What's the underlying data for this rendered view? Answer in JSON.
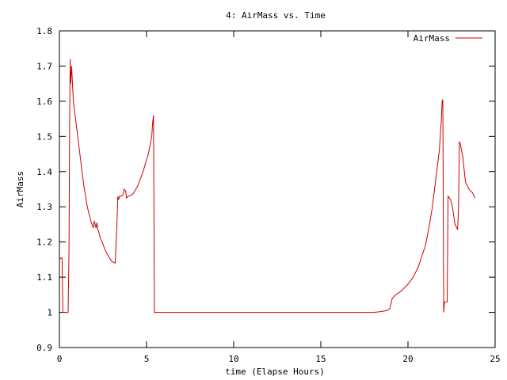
{
  "chart_data": {
    "type": "line",
    "title": "4: AirMass vs. Time",
    "xlabel": "time (Elapse Hours)",
    "ylabel": "AirMass",
    "xlim": [
      0,
      25
    ],
    "ylim": [
      0.9,
      1.8
    ],
    "xticks": [
      0,
      5,
      10,
      15,
      20,
      25
    ],
    "xtick_labels": [
      "0",
      "5",
      "10",
      "15",
      "20",
      "25"
    ],
    "yticks": [
      0.9,
      1,
      1.1,
      1.2,
      1.3,
      1.4,
      1.5,
      1.6,
      1.7,
      1.8
    ],
    "ytick_labels": [
      "0.9",
      "1",
      "1.1",
      "1.2",
      "1.3",
      "1.4",
      "1.5",
      "1.6",
      "1.7",
      "1.8"
    ],
    "grid": false,
    "legend": "top-right",
    "series": [
      {
        "name": "AirMass",
        "color": "#cc0000",
        "x": [
          0.0,
          0.1,
          0.15,
          0.2,
          0.3,
          0.4,
          0.45,
          0.5,
          0.55,
          0.58,
          0.62,
          0.65,
          0.7,
          0.8,
          1.0,
          1.2,
          1.4,
          1.6,
          1.8,
          1.95,
          2.0,
          2.1,
          2.15,
          2.2,
          2.25,
          2.35,
          2.45,
          2.6,
          2.8,
          3.0,
          3.2,
          3.3,
          3.35,
          3.4,
          3.45,
          3.55,
          3.65,
          3.72,
          3.8,
          3.85,
          3.95,
          4.2,
          4.5,
          4.8,
          5.1,
          5.3,
          5.35,
          5.4,
          5.45,
          5.55,
          5.6,
          6.0,
          10.0,
          15.0,
          18.0,
          18.4,
          18.8,
          18.95,
          19.0,
          19.1,
          19.2,
          19.3,
          19.6,
          20.0,
          20.3,
          20.6,
          20.8,
          21.0,
          21.2,
          21.4,
          21.6,
          21.8,
          21.92,
          21.96,
          22.0,
          22.05,
          22.1,
          22.15,
          22.2,
          22.25,
          22.3,
          22.45,
          22.55,
          22.7,
          22.85,
          22.9,
          22.95,
          23.0,
          23.15,
          23.3,
          23.5,
          23.7,
          23.85
        ],
        "y": [
          1.15,
          1.155,
          1.155,
          1.0,
          1.0,
          1.0,
          1.0,
          1.0,
          1.18,
          1.5,
          1.72,
          1.65,
          1.7,
          1.6,
          1.52,
          1.44,
          1.36,
          1.3,
          1.26,
          1.24,
          1.26,
          1.24,
          1.255,
          1.235,
          1.23,
          1.21,
          1.2,
          1.18,
          1.16,
          1.145,
          1.14,
          1.25,
          1.33,
          1.32,
          1.33,
          1.33,
          1.335,
          1.35,
          1.345,
          1.325,
          1.33,
          1.335,
          1.36,
          1.4,
          1.45,
          1.5,
          1.54,
          1.56,
          1.0,
          1.0,
          1.0,
          1.0,
          1.0,
          1.0,
          1.0,
          1.002,
          1.005,
          1.01,
          1.02,
          1.04,
          1.045,
          1.05,
          1.06,
          1.08,
          1.1,
          1.13,
          1.16,
          1.19,
          1.24,
          1.3,
          1.38,
          1.46,
          1.55,
          1.6,
          1.605,
          1.0,
          1.03,
          1.03,
          1.03,
          1.03,
          1.33,
          1.32,
          1.3,
          1.25,
          1.235,
          1.3,
          1.485,
          1.48,
          1.44,
          1.37,
          1.35,
          1.34,
          1.325
        ]
      }
    ]
  }
}
